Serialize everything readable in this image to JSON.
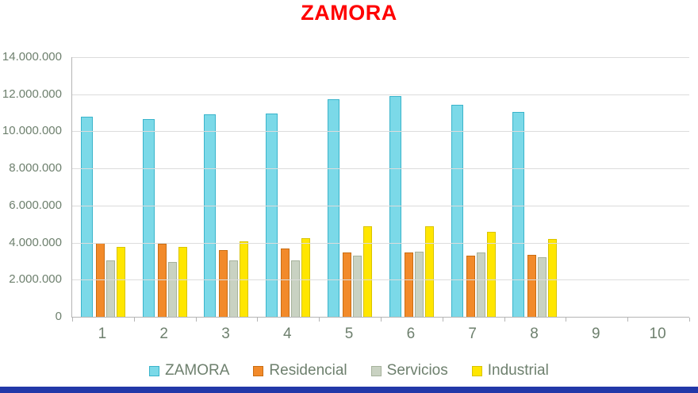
{
  "title": "ZAMORA",
  "colors": {
    "title": "#ff0000",
    "text": "#6e806e",
    "gridline": "#dcdcdc",
    "axis": "#b5b5b5",
    "background": "#ffffff",
    "bottom_bar": "#2238a8"
  },
  "y_axis": {
    "ticks": [
      "14.000.000",
      "12.000.000",
      "10.000.000",
      "8.000.000",
      "6.000.000",
      "4.000.000",
      "2.000.000",
      "0"
    ]
  },
  "x_axis": {
    "labels": [
      "1",
      "2",
      "3",
      "4",
      "5",
      "6",
      "7",
      "8",
      "9",
      "10"
    ]
  },
  "legend": [
    {
      "label": "ZAMORA",
      "fill": "#7bd9e8",
      "border": "#3ab4cb"
    },
    {
      "label": "Residencial",
      "fill": "#f28a2a",
      "border": "#c96d12"
    },
    {
      "label": "Servicios",
      "fill": "#c9d2c2",
      "border": "#a6b29c"
    },
    {
      "label": "Industrial",
      "fill": "#ffe600",
      "border": "#d9c400"
    }
  ],
  "chart_data": {
    "type": "bar",
    "title": "ZAMORA",
    "categories": [
      1,
      2,
      3,
      4,
      5,
      6,
      7,
      8,
      9,
      10
    ],
    "series": [
      {
        "name": "ZAMORA",
        "color": "#7bd9e8",
        "values": [
          10800000,
          10650000,
          10900000,
          10950000,
          11750000,
          11900000,
          11450000,
          11050000,
          null,
          null
        ]
      },
      {
        "name": "Residencial",
        "color": "#f28a2a",
        "values": [
          4000000,
          3950000,
          3600000,
          3700000,
          3450000,
          3450000,
          3300000,
          3350000,
          null,
          null
        ]
      },
      {
        "name": "Servicios",
        "color": "#c9d2c2",
        "values": [
          3050000,
          2950000,
          3050000,
          3050000,
          3300000,
          3500000,
          3450000,
          3200000,
          null,
          null
        ]
      },
      {
        "name": "Industrial",
        "color": "#ffe600",
        "values": [
          3750000,
          3750000,
          4050000,
          4250000,
          4900000,
          4900000,
          4600000,
          4200000,
          null,
          null
        ]
      }
    ],
    "xlabel": "",
    "ylabel": "",
    "ylim": [
      0,
      14000000
    ],
    "ytick_step": 2000000,
    "grid": true,
    "legend_position": "bottom"
  }
}
